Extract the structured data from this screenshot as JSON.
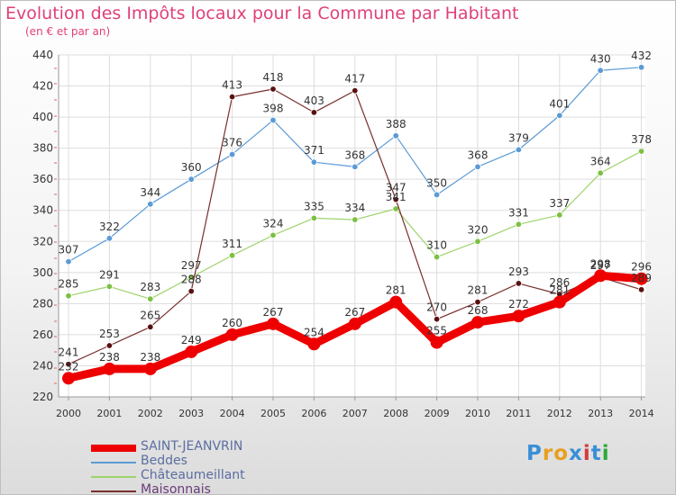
{
  "chart_data": {
    "type": "line",
    "title": "Evolution des Impôts locaux pour la Commune par Habitant",
    "subtitle": "(en € et par an)",
    "categories": [
      "2000",
      "2001",
      "2002",
      "2003",
      "2004",
      "2005",
      "2006",
      "2007",
      "2008",
      "2009",
      "2010",
      "2011",
      "2012",
      "2013",
      "2014"
    ],
    "ylim": [
      220,
      440
    ],
    "yticks": [
      220,
      240,
      260,
      280,
      300,
      320,
      340,
      360,
      380,
      400,
      420,
      440
    ],
    "grid": true,
    "legend_position": "bottom-left",
    "series": [
      {
        "name": "Beddes",
        "color": "#5b9bd5",
        "marker": "#5b9bd5",
        "values": [
          307,
          322,
          344,
          360,
          376,
          398,
          371,
          368,
          388,
          350,
          368,
          379,
          401,
          430,
          432
        ]
      },
      {
        "name": "Châteaumeillant",
        "color": "#9ed36a",
        "marker": "#7cc043",
        "values": [
          285,
          291,
          283,
          297,
          311,
          324,
          335,
          334,
          341,
          310,
          320,
          331,
          337,
          364,
          378
        ]
      },
      {
        "name": "Maisonnais",
        "color": "#7a2e2e",
        "marker": "#5a1010",
        "values": [
          241,
          253,
          265,
          288,
          413,
          418,
          403,
          417,
          347,
          270,
          281,
          293,
          286,
          297,
          289
        ]
      },
      {
        "name": "SAINT-JEANVRIN",
        "color": "#ee0000",
        "marker": "#ee0000",
        "values": [
          232,
          238,
          238,
          249,
          260,
          267,
          254,
          267,
          281,
          255,
          268,
          272,
          281,
          298,
          296
        ]
      }
    ],
    "legend_order": [
      "SAINT-JEANVRIN",
      "Beddes",
      "Châteaumeillant",
      "Maisonnais"
    ]
  },
  "brand": {
    "text": "Proxiti"
  },
  "colors": {
    "title": "#e0407a",
    "axis_text": "#333333",
    "grid": "#dddddd"
  }
}
